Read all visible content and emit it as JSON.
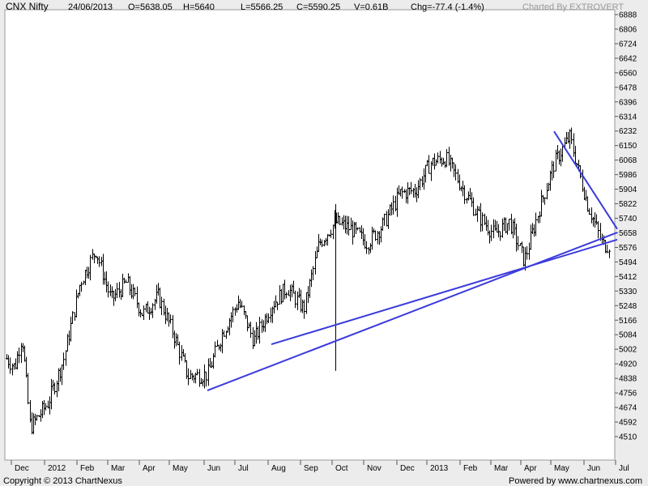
{
  "header": {
    "symbol": "CNX Nifty",
    "date": "24/06/2013",
    "open": "O=5638.05",
    "high": "H=5640",
    "low": "L=5566.25",
    "close": "C=5590.25",
    "volume": "V=0.61B",
    "change": "Chg=-77.4 (-1.4%)",
    "charted_by": "Charted By EXTROVERT"
  },
  "footer": {
    "copyright": "Copyright © 2013 ChartNexus",
    "powered_by": "Powered by www.chartnexus.com"
  },
  "colors": {
    "background": "#ececec",
    "plot_background": "#ffffff",
    "bars": "#000000",
    "trendlines": "#3b3bdc"
  },
  "chart_data": {
    "type": "ohlc",
    "title": "",
    "xlabel": "",
    "ylabel": "",
    "ylim": [
      4428,
      6924
    ],
    "y_ticks": [
      6888,
      6806,
      6724,
      6642,
      6560,
      6478,
      6396,
      6314,
      6232,
      6150,
      6068,
      5986,
      5904,
      5822,
      5740,
      5658,
      5576,
      5494,
      5412,
      5330,
      5248,
      5166,
      5084,
      5002,
      4920,
      4838,
      4756,
      4674,
      4592,
      4510
    ],
    "x_ticks": [
      "Dec",
      "2012",
      "Feb",
      "Mar",
      "Apr",
      "May",
      "Jun",
      "Jul",
      "Aug",
      "Sep",
      "Oct",
      "Nov",
      "Dec",
      "2013",
      "Feb",
      "Mar",
      "Apr",
      "May",
      "Jun",
      "Jul"
    ],
    "grid": false,
    "period": "Nov 2011 – Jun 2013 (daily)",
    "price_path": [
      [
        "Nov 2011",
        4950
      ],
      [
        "Nov 2011",
        5080
      ],
      [
        "Dec 2011",
        4900
      ],
      [
        "Dec 2011",
        4560
      ],
      [
        "2012",
        4700
      ],
      [
        "Jan 2012",
        4940
      ],
      [
        "Feb 2012",
        5380
      ],
      [
        "Feb 2012",
        5560
      ],
      [
        "Mar 2012",
        5280
      ],
      [
        "Mar 2012",
        5380
      ],
      [
        "Apr 2012",
        5200
      ],
      [
        "Apr 2012",
        5300
      ],
      [
        "May 2012",
        5100
      ],
      [
        "May 2012",
        4850
      ],
      [
        "Jun 2012",
        4860
      ],
      [
        "Jun 2012",
        5100
      ],
      [
        "Jul 2012",
        5270
      ],
      [
        "Jul 2012",
        5050
      ],
      [
        "Aug 2012",
        5250
      ],
      [
        "Aug 2012",
        5350
      ],
      [
        "Sep 2012",
        5230
      ],
      [
        "Sep 2012",
        5600
      ],
      [
        "Oct 2012",
        5720
      ],
      [
        "Oct 2012",
        5680
      ],
      [
        "Nov 2012",
        5600
      ],
      [
        "Nov 2012",
        5700
      ],
      [
        "Dec 2012",
        5880
      ],
      [
        "Dec 2012",
        5900
      ],
      [
        "2013",
        6050
      ],
      [
        "Jan 2013",
        6080
      ],
      [
        "Feb 2013",
        5900
      ],
      [
        "Feb 2013",
        5750
      ],
      [
        "Mar 2013",
        5650
      ],
      [
        "Mar 2013",
        5720
      ],
      [
        "Apr 2013",
        5500
      ],
      [
        "Apr 2013",
        5800
      ],
      [
        "May 2013",
        6050
      ],
      [
        "May 2013",
        6200
      ],
      [
        "Jun 2013",
        5820
      ],
      [
        "Jun 2013",
        5590
      ]
    ],
    "anomaly_bar": {
      "date": "Oct 2012",
      "high": 5820,
      "low": 4880
    },
    "trendlines": [
      {
        "from": [
          "Jun 2012",
          4770
        ],
        "to": [
          "Jul 2013",
          5660
        ]
      },
      {
        "from": [
          "Aug 2012",
          5030
        ],
        "to": [
          "Jul 2013",
          5620
        ]
      },
      {
        "from": [
          "May 2013",
          6230
        ],
        "to": [
          "Jul 2013",
          5680
        ]
      }
    ],
    "last_bar": {
      "date": "24/06/2013",
      "open": 5638.05,
      "high": 5640,
      "low": 5566.25,
      "close": 5590.25
    }
  }
}
